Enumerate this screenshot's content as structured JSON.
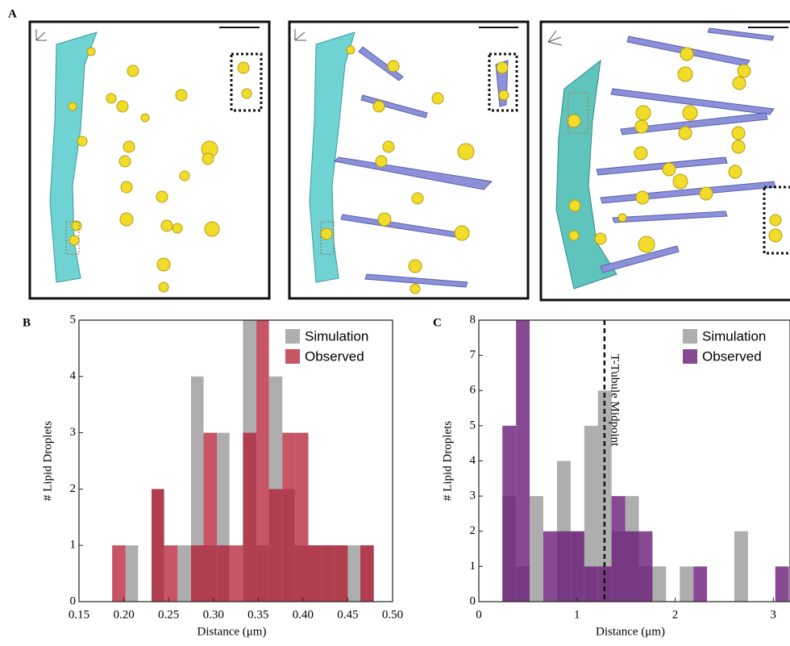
{
  "panel_a": {
    "label": "A"
  },
  "chart_data": [
    {
      "type": "histogram",
      "panel_label": "B",
      "xlabel": "Distance (μm)",
      "ylabel": "# Lipid Droplets",
      "bins": [
        0.187,
        0.202,
        0.216,
        0.231,
        0.245,
        0.26,
        0.275,
        0.289,
        0.304,
        0.318,
        0.333,
        0.348,
        0.362,
        0.377,
        0.391,
        0.406,
        0.421,
        0.435,
        0.45,
        0.464,
        0.479
      ],
      "series": [
        {
          "name": "Simulation",
          "color": "#9a9a9a",
          "alpha": 0.8,
          "values": [
            0,
            1,
            0,
            2,
            0,
            1,
            4,
            1,
            3,
            0,
            5,
            1,
            4,
            2,
            1,
            1,
            1,
            1,
            1,
            1
          ]
        },
        {
          "name": "Observed",
          "color": "#b3142a",
          "alpha": 0.72,
          "values": [
            1,
            0,
            0,
            2,
            1,
            0,
            1,
            3,
            1,
            1,
            3,
            5,
            2,
            3,
            3,
            1,
            1,
            1,
            0,
            1
          ]
        }
      ],
      "xlim": [
        0.15,
        0.5
      ],
      "xticks": [
        0.15,
        {
          "value": 0.2,
          "label": "0.20"
        },
        0.25,
        {
          "value": 0.3,
          "label": "0.30"
        },
        0.35,
        {
          "value": 0.4,
          "label": "0.40"
        },
        0.45,
        {
          "value": 0.5,
          "label": "0.50"
        }
      ],
      "ylim": [
        0,
        5
      ],
      "yticks": [
        0,
        1,
        2,
        3,
        4,
        5
      ],
      "legend": "upper right"
    },
    {
      "type": "histogram",
      "panel_label": "C",
      "xlabel": "Distance (μm)",
      "ylabel": "# Lipid Droplets",
      "bins": [
        0.24,
        0.379,
        0.518,
        0.657,
        0.796,
        0.935,
        1.074,
        1.213,
        1.352,
        1.491,
        1.63,
        1.769,
        1.908,
        2.047,
        2.186,
        2.325,
        2.464,
        2.603,
        2.742,
        2.881,
        3.02,
        3.159
      ],
      "series": [
        {
          "name": "Simulation",
          "color": "#9a9a9a",
          "alpha": 0.8,
          "values": [
            3,
            1,
            3,
            0,
            4,
            2,
            5,
            6,
            2,
            3,
            1,
            1,
            0,
            1,
            0,
            0,
            0,
            2,
            0,
            0,
            0
          ]
        },
        {
          "name": "Observed",
          "color": "#6a1b78",
          "alpha": 0.8,
          "values": [
            5,
            8,
            0,
            2,
            2,
            2,
            1,
            1,
            3,
            2,
            2,
            0,
            0,
            0,
            1,
            0,
            0,
            0,
            0,
            0,
            1
          ]
        }
      ],
      "xlim": [
        0,
        3.17
      ],
      "xticks": [
        0,
        1,
        2,
        3
      ],
      "ylim": [
        0,
        8
      ],
      "yticks": [
        0,
        1,
        2,
        3,
        4,
        5,
        6,
        7,
        8
      ],
      "legend": "upper right",
      "reference_line": {
        "x": 1.28,
        "label": "T-Tubule Midpoint"
      }
    }
  ]
}
